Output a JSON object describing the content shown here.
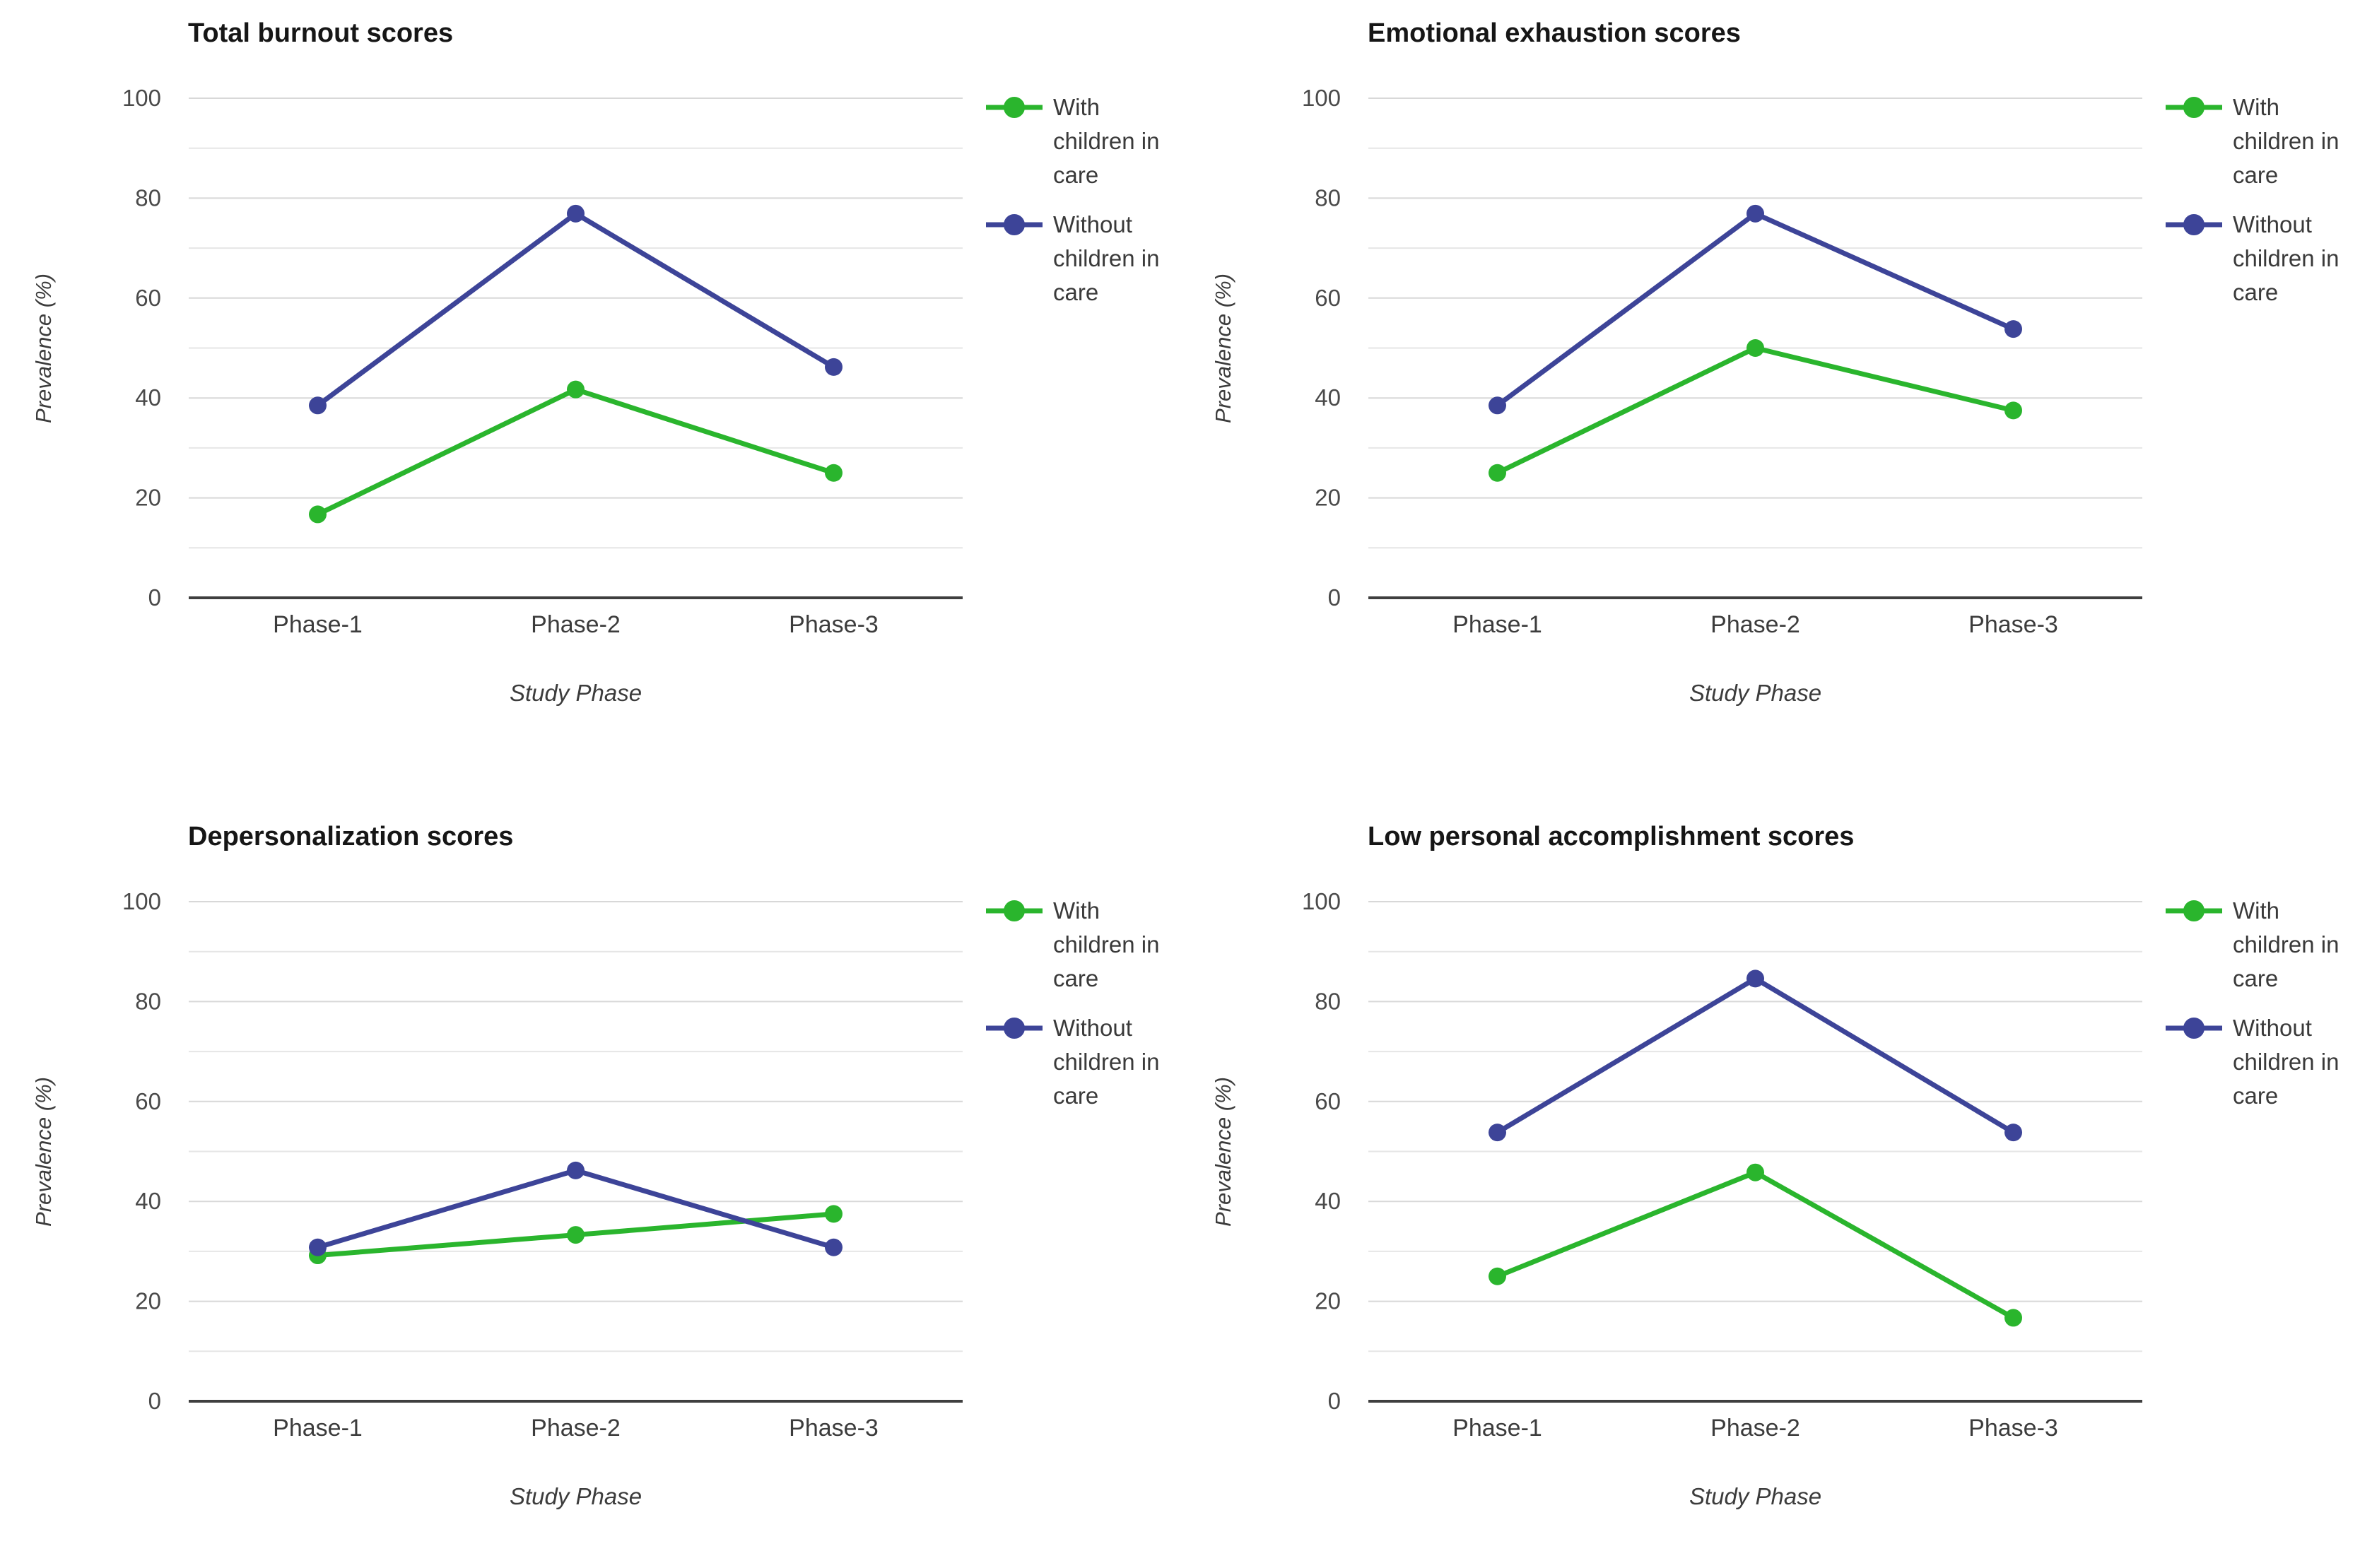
{
  "page": {
    "background": "#ffffff"
  },
  "colors": {
    "with_children": "#2ab52d",
    "without_children": "#3d4498",
    "grid_minor": "#e6e6e6",
    "grid_major": "#d8d8d8",
    "axis_line": "#3f3f3f",
    "tick_label": "#4a4a4a",
    "axis_title": "#3c3c3c",
    "chart_title": "#161616",
    "legend_text": "#3a3a3a"
  },
  "chart_data": [
    {
      "type": "line",
      "title": "Total burnout scores",
      "xlabel": "Study Phase",
      "ylabel": "Prevalence (%)",
      "categories": [
        "Phase-1",
        "Phase-2",
        "Phase-3"
      ],
      "series": [
        {
          "name": "With children in care",
          "color_key": "with_children",
          "values": [
            16.7,
            41.7,
            25.0
          ]
        },
        {
          "name": "Without children in care",
          "color_key": "without_children",
          "values": [
            38.5,
            76.9,
            46.2
          ]
        }
      ],
      "ylim": [
        0,
        100
      ],
      "yticks": [
        0,
        20,
        40,
        60,
        80,
        100
      ],
      "minor_grid_step": 10,
      "grid": true,
      "legend_position": "right"
    },
    {
      "type": "line",
      "title": "Emotional exhaustion scores",
      "xlabel": "Study Phase",
      "ylabel": "Prevalence (%)",
      "categories": [
        "Phase-1",
        "Phase-2",
        "Phase-3"
      ],
      "series": [
        {
          "name": "With children in care",
          "color_key": "with_children",
          "values": [
            25.0,
            50.0,
            37.5
          ]
        },
        {
          "name": "Without children in care",
          "color_key": "without_children",
          "values": [
            38.5,
            76.9,
            53.8
          ]
        }
      ],
      "ylim": [
        0,
        100
      ],
      "yticks": [
        0,
        20,
        40,
        60,
        80,
        100
      ],
      "minor_grid_step": 10,
      "grid": true,
      "legend_position": "right"
    },
    {
      "type": "line",
      "title": "Depersonalization scores",
      "xlabel": "Study Phase",
      "ylabel": "Prevalence (%)",
      "categories": [
        "Phase-1",
        "Phase-2",
        "Phase-3"
      ],
      "series": [
        {
          "name": "With children in care",
          "color_key": "with_children",
          "values": [
            29.2,
            33.3,
            37.5
          ]
        },
        {
          "name": "Without children in care",
          "color_key": "without_children",
          "values": [
            30.8,
            46.2,
            30.8
          ]
        }
      ],
      "ylim": [
        0,
        100
      ],
      "yticks": [
        0,
        20,
        40,
        60,
        80,
        100
      ],
      "minor_grid_step": 10,
      "grid": true,
      "legend_position": "right"
    },
    {
      "type": "line",
      "title": "Low personal accomplishment scores",
      "xlabel": "Study Phase",
      "ylabel": "Prevalence (%)",
      "categories": [
        "Phase-1",
        "Phase-2",
        "Phase-3"
      ],
      "series": [
        {
          "name": "With children in care",
          "color_key": "with_children",
          "values": [
            25.0,
            45.8,
            16.7
          ]
        },
        {
          "name": "Without children in care",
          "color_key": "without_children",
          "values": [
            53.8,
            84.6,
            53.8
          ]
        }
      ],
      "ylim": [
        0,
        100
      ],
      "yticks": [
        0,
        20,
        40,
        60,
        80,
        100
      ],
      "minor_grid_step": 10,
      "grid": true,
      "legend_position": "right"
    }
  ]
}
